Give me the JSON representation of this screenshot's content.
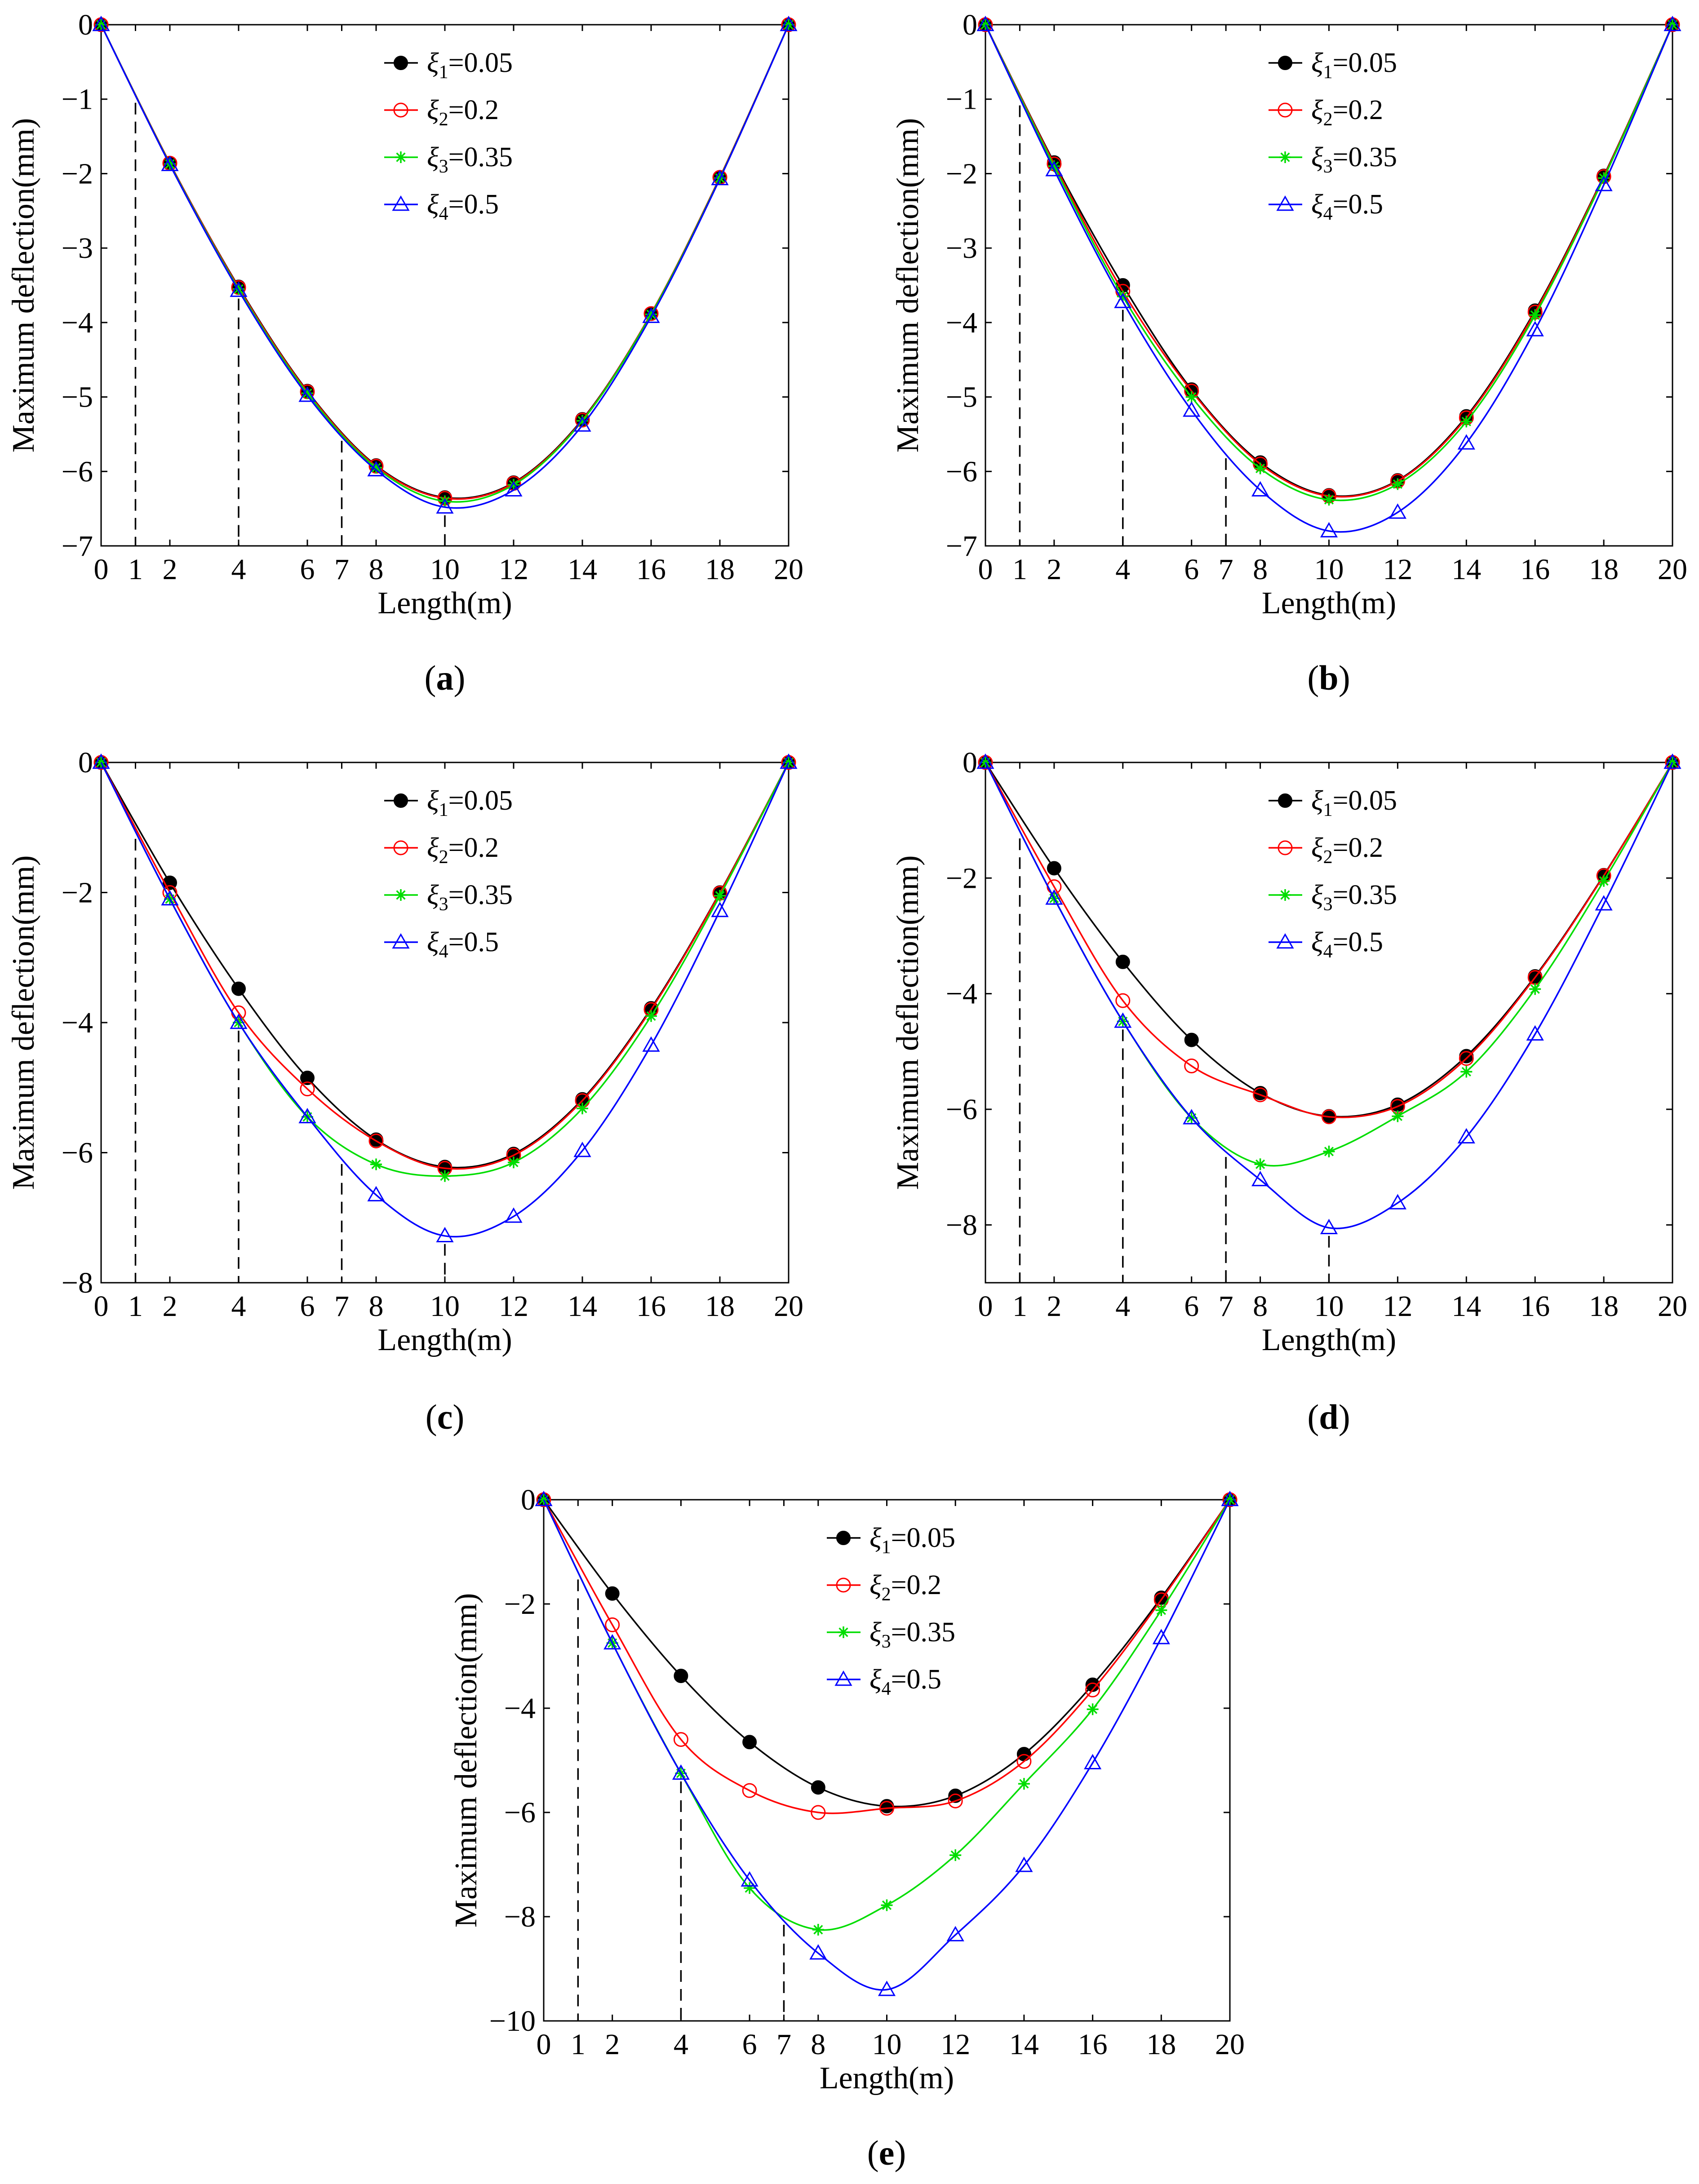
{
  "figure": {
    "panels": [
      {
        "id": "a",
        "caption_letter": "a",
        "chart_data": {
          "type": "line",
          "xlabel": "Length(m)",
          "ylabel": "Maximum deflection(mm)",
          "xlim": [
            0,
            20
          ],
          "ylim": [
            -7,
            0
          ],
          "xticks": [
            "0",
            "1",
            "2",
            "4",
            "6",
            "7",
            "8",
            "10",
            "12",
            "14",
            "16",
            "18",
            "20"
          ],
          "yticks": [
            "0",
            "−1",
            "−2",
            "−3",
            "−4",
            "−5",
            "−6",
            "−7"
          ],
          "x": [
            0,
            2,
            4,
            6,
            8,
            10,
            12,
            14,
            16,
            18,
            20
          ],
          "marker_x": [
            0,
            2,
            4,
            6,
            8,
            10,
            12,
            14,
            16,
            18,
            20
          ],
          "dashed_x": [
            1,
            4,
            7,
            10
          ],
          "series": [
            {
              "name": "ξ1=0.05",
              "symbol": "ξ",
              "sub": "1",
              "value_label": "=0.05",
              "color": "#000000",
              "marker": "filled-circle",
              "values": [
                0,
                -1.86,
                -3.52,
                -4.92,
                -5.92,
                -6.35,
                -6.15,
                -5.3,
                -3.88,
                -2.05,
                0
              ]
            },
            {
              "name": "ξ2=0.2",
              "symbol": "ξ",
              "sub": "2",
              "value_label": "=0.2",
              "color": "#ff0000",
              "marker": "open-circle",
              "values": [
                0,
                -1.86,
                -3.53,
                -4.93,
                -5.93,
                -6.36,
                -6.16,
                -5.31,
                -3.88,
                -2.05,
                0
              ]
            },
            {
              "name": "ξ3=0.35",
              "symbol": "ξ",
              "sub": "3",
              "value_label": "=0.35",
              "color": "#00dd00",
              "marker": "star",
              "values": [
                0,
                -1.87,
                -3.55,
                -4.95,
                -5.95,
                -6.4,
                -6.18,
                -5.32,
                -3.89,
                -2.06,
                0
              ]
            },
            {
              "name": "ξ4=0.5",
              "symbol": "ξ",
              "sub": "4",
              "value_label": "=0.5",
              "color": "#0000ff",
              "marker": "open-triangle",
              "values": [
                0,
                -1.88,
                -3.57,
                -4.98,
                -5.98,
                -6.48,
                -6.25,
                -5.38,
                -3.92,
                -2.07,
                0
              ]
            }
          ]
        }
      },
      {
        "id": "b",
        "caption_letter": "b",
        "chart_data": {
          "type": "line",
          "xlabel": "Length(m)",
          "ylabel": "Maximum deflection(mm)",
          "xlim": [
            0,
            20
          ],
          "ylim": [
            -7,
            0
          ],
          "xticks": [
            "0",
            "1",
            "2",
            "4",
            "6",
            "7",
            "8",
            "10",
            "12",
            "14",
            "16",
            "18",
            "20"
          ],
          "yticks": [
            "0",
            "−1",
            "−2",
            "−3",
            "−4",
            "−5",
            "−6",
            "−7"
          ],
          "x": [
            0,
            2,
            4,
            6,
            8,
            10,
            12,
            14,
            16,
            18,
            20
          ],
          "marker_x": [
            0,
            2,
            4,
            6,
            8,
            10,
            12,
            14,
            16,
            18,
            20
          ],
          "dashed_x": [
            1,
            4,
            7
          ],
          "series": [
            {
              "name": "ξ1=0.05",
              "symbol": "ξ",
              "sub": "1",
              "value_label": "=0.05",
              "color": "#000000",
              "marker": "filled-circle",
              "values": [
                0,
                -1.85,
                -3.5,
                -4.9,
                -5.88,
                -6.32,
                -6.12,
                -5.26,
                -3.84,
                -2.03,
                0
              ]
            },
            {
              "name": "ξ2=0.2",
              "symbol": "ξ",
              "sub": "2",
              "value_label": "=0.2",
              "color": "#ff0000",
              "marker": "open-circle",
              "values": [
                0,
                -1.87,
                -3.58,
                -4.92,
                -5.9,
                -6.33,
                -6.13,
                -5.28,
                -3.86,
                -2.04,
                0
              ]
            },
            {
              "name": "ξ3=0.35",
              "symbol": "ξ",
              "sub": "3",
              "value_label": "=0.35",
              "color": "#00dd00",
              "marker": "star",
              "values": [
                0,
                -1.9,
                -3.65,
                -5.0,
                -5.96,
                -6.38,
                -6.17,
                -5.33,
                -3.9,
                -2.06,
                0
              ]
            },
            {
              "name": "ξ4=0.5",
              "symbol": "ξ",
              "sub": "4",
              "value_label": "=0.5",
              "color": "#0000ff",
              "marker": "open-triangle",
              "values": [
                0,
                -1.95,
                -3.72,
                -5.18,
                -6.25,
                -6.8,
                -6.55,
                -5.62,
                -4.1,
                -2.15,
                0
              ]
            }
          ]
        }
      },
      {
        "id": "c",
        "caption_letter": "c",
        "chart_data": {
          "type": "line",
          "xlabel": "Length(m)",
          "ylabel": "Maximum deflection(mm)",
          "xlim": [
            0,
            20
          ],
          "ylim": [
            -8,
            0
          ],
          "xticks": [
            "0",
            "1",
            "2",
            "4",
            "6",
            "7",
            "8",
            "10",
            "12",
            "14",
            "16",
            "18",
            "20"
          ],
          "yticks": [
            "0",
            "−2",
            "−4",
            "−6",
            "−8"
          ],
          "x": [
            0,
            2,
            4,
            6,
            8,
            10,
            12,
            14,
            16,
            18,
            20
          ],
          "marker_x": [
            0,
            2,
            4,
            6,
            8,
            10,
            12,
            14,
            16,
            18,
            20
          ],
          "dashed_x": [
            1,
            4,
            7,
            10
          ],
          "series": [
            {
              "name": "ξ1=0.05",
              "symbol": "ξ",
              "sub": "1",
              "value_label": "=0.05",
              "color": "#000000",
              "marker": "filled-circle",
              "values": [
                0,
                -1.85,
                -3.48,
                -4.85,
                -5.8,
                -6.22,
                -6.02,
                -5.18,
                -3.78,
                -2.0,
                0
              ]
            },
            {
              "name": "ξ2=0.2",
              "symbol": "ξ",
              "sub": "2",
              "value_label": "=0.2",
              "color": "#ff0000",
              "marker": "open-circle",
              "values": [
                0,
                -2.0,
                -3.85,
                -5.02,
                -5.82,
                -6.24,
                -6.04,
                -5.2,
                -3.8,
                -2.01,
                0
              ]
            },
            {
              "name": "ξ3=0.35",
              "symbol": "ξ",
              "sub": "3",
              "value_label": "=0.35",
              "color": "#00dd00",
              "marker": "star",
              "values": [
                0,
                -2.1,
                -4.0,
                -5.45,
                -6.18,
                -6.36,
                -6.15,
                -5.32,
                -3.9,
                -2.05,
                0
              ]
            },
            {
              "name": "ξ4=0.5",
              "symbol": "ξ",
              "sub": "4",
              "value_label": "=0.5",
              "color": "#0000ff",
              "marker": "open-triangle",
              "values": [
                0,
                -2.1,
                -4.0,
                -5.45,
                -6.65,
                -7.28,
                -6.98,
                -5.97,
                -4.35,
                -2.28,
                0
              ]
            }
          ]
        }
      },
      {
        "id": "d",
        "caption_letter": "d",
        "chart_data": {
          "type": "line",
          "xlabel": "Length(m)",
          "ylabel": "Maximum deflection(mm)",
          "xlim": [
            0,
            20
          ],
          "ylim": [
            -9,
            0
          ],
          "xticks": [
            "0",
            "1",
            "2",
            "4",
            "6",
            "7",
            "8",
            "10",
            "12",
            "14",
            "16",
            "18",
            "20"
          ],
          "yticks": [
            "0",
            "−2",
            "−4",
            "−6",
            "−8"
          ],
          "x": [
            0,
            2,
            4,
            6,
            8,
            10,
            12,
            14,
            16,
            18,
            20
          ],
          "marker_x": [
            0,
            2,
            4,
            6,
            8,
            10,
            12,
            14,
            16,
            18,
            20
          ],
          "dashed_x": [
            1,
            4,
            7,
            10
          ],
          "series": [
            {
              "name": "ξ1=0.05",
              "symbol": "ξ",
              "sub": "1",
              "value_label": "=0.05",
              "color": "#000000",
              "marker": "filled-circle",
              "values": [
                0,
                -1.83,
                -3.45,
                -4.8,
                -5.72,
                -6.12,
                -5.92,
                -5.08,
                -3.7,
                -1.95,
                0
              ]
            },
            {
              "name": "ξ2=0.2",
              "symbol": "ξ",
              "sub": "2",
              "value_label": "=0.2",
              "color": "#ff0000",
              "marker": "open-circle",
              "values": [
                0,
                -2.15,
                -4.12,
                -5.25,
                -5.75,
                -6.13,
                -5.95,
                -5.12,
                -3.72,
                -1.96,
                0
              ]
            },
            {
              "name": "ξ3=0.35",
              "symbol": "ξ",
              "sub": "3",
              "value_label": "=0.35",
              "color": "#00dd00",
              "marker": "star",
              "values": [
                0,
                -2.35,
                -4.48,
                -6.15,
                -6.95,
                -6.73,
                -6.12,
                -5.35,
                -3.92,
                -2.05,
                0
              ]
            },
            {
              "name": "ξ4=0.5",
              "symbol": "ξ",
              "sub": "4",
              "value_label": "=0.5",
              "color": "#0000ff",
              "marker": "open-triangle",
              "values": [
                0,
                -2.35,
                -4.48,
                -6.15,
                -7.22,
                -8.05,
                -7.62,
                -6.48,
                -4.7,
                -2.45,
                0
              ]
            }
          ]
        }
      },
      {
        "id": "e",
        "caption_letter": "e",
        "chart_data": {
          "type": "line",
          "xlabel": "Length(m)",
          "ylabel": "Maximum deflection(mm)",
          "xlim": [
            0,
            20
          ],
          "ylim": [
            -10,
            0
          ],
          "xticks": [
            "0",
            "1",
            "2",
            "4",
            "6",
            "7",
            "8",
            "10",
            "12",
            "14",
            "16",
            "18",
            "20"
          ],
          "yticks": [
            "0",
            "−2",
            "−4",
            "−6",
            "−8",
            "−10"
          ],
          "x": [
            0,
            2,
            4,
            6,
            8,
            10,
            12,
            14,
            16,
            18,
            20
          ],
          "marker_x": [
            0,
            2,
            4,
            6,
            8,
            10,
            12,
            14,
            16,
            18,
            20
          ],
          "dashed_x": [
            1,
            4,
            7
          ],
          "series": [
            {
              "name": "ξ1=0.05",
              "symbol": "ξ",
              "sub": "1",
              "value_label": "=0.05",
              "color": "#000000",
              "marker": "filled-circle",
              "values": [
                0,
                -1.8,
                -3.38,
                -4.65,
                -5.52,
                -5.88,
                -5.68,
                -4.88,
                -3.55,
                -1.88,
                0
              ]
            },
            {
              "name": "ξ2=0.2",
              "symbol": "ξ",
              "sub": "2",
              "value_label": "=0.2",
              "color": "#ff0000",
              "marker": "open-circle",
              "values": [
                0,
                -2.4,
                -4.6,
                -5.58,
                -6.0,
                -5.92,
                -5.78,
                -5.02,
                -3.65,
                -1.92,
                0
              ]
            },
            {
              "name": "ξ3=0.35",
              "symbol": "ξ",
              "sub": "3",
              "value_label": "=0.35",
              "color": "#00dd00",
              "marker": "star",
              "values": [
                0,
                -2.75,
                -5.25,
                -7.45,
                -8.25,
                -7.78,
                -6.82,
                -5.45,
                -4.02,
                -2.12,
                0
              ]
            },
            {
              "name": "ξ4=0.5",
              "symbol": "ξ",
              "sub": "4",
              "value_label": "=0.5",
              "color": "#0000ff",
              "marker": "open-triangle",
              "values": [
                0,
                -2.75,
                -5.25,
                -7.3,
                -8.7,
                -9.4,
                -8.35,
                -7.02,
                -5.05,
                -2.65,
                0
              ]
            }
          ]
        }
      }
    ]
  }
}
